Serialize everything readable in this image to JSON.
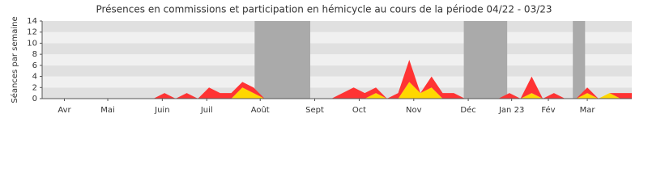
{
  "chart_data": {
    "type": "stacked-area",
    "title": "Présences en commissions et participation en hémicycle au cours de la période 04/22 - 03/23",
    "y_label": "Séances par semaine",
    "xlim": [
      0,
      53
    ],
    "xticks": [
      {
        "value": 2,
        "label": "Avr"
      },
      {
        "value": 5.9,
        "label": "Mai"
      },
      {
        "value": 10.8,
        "label": "Juin"
      },
      {
        "value": 14.8,
        "label": "Juil"
      },
      {
        "value": 19.6,
        "label": "Août"
      },
      {
        "value": 24.5,
        "label": "Sept"
      },
      {
        "value": 28.5,
        "label": "Oct"
      },
      {
        "value": 33.4,
        "label": "Nov"
      },
      {
        "value": 38.3,
        "label": "Déc"
      },
      {
        "value": 42.2,
        "label": "Jan 23"
      },
      {
        "value": 45.5,
        "label": "Fév"
      },
      {
        "value": 49,
        "label": "Mar"
      }
    ],
    "ylim": [
      0,
      14
    ],
    "yticks": [
      0,
      2,
      4,
      6,
      8,
      10,
      12,
      14
    ],
    "grid": true,
    "shaded": [
      [
        19.1,
        24.1
      ],
      [
        37.9,
        41.8
      ],
      [
        47.7,
        48.8
      ]
    ],
    "shade_color": "#aaaaaa",
    "series": [
      {
        "color": "#ffd700",
        "values": [
          0,
          0,
          0,
          0,
          0,
          0,
          0,
          0,
          0,
          0,
          0,
          0,
          0,
          0,
          0,
          0,
          0,
          0,
          2,
          1,
          0,
          0,
          0,
          0,
          0,
          0,
          0,
          0,
          0,
          0,
          1,
          0,
          0,
          3,
          1,
          2,
          0,
          0,
          0,
          0,
          0,
          0,
          0,
          0,
          1,
          0,
          0,
          0,
          0,
          1,
          0,
          1,
          0,
          0
        ]
      },
      {
        "color": "#ff3333",
        "values": [
          0,
          0,
          0,
          0,
          0,
          0,
          0,
          0,
          0,
          0,
          0,
          1,
          0,
          1,
          0,
          2,
          1,
          1,
          1,
          1,
          0,
          0,
          0,
          0,
          0,
          0,
          0,
          1,
          2,
          1,
          1,
          0,
          1,
          4,
          0,
          2,
          1,
          1,
          0,
          0,
          0,
          0,
          1,
          0,
          3,
          0,
          1,
          0,
          0,
          1,
          0,
          0,
          1,
          1
        ]
      }
    ]
  }
}
